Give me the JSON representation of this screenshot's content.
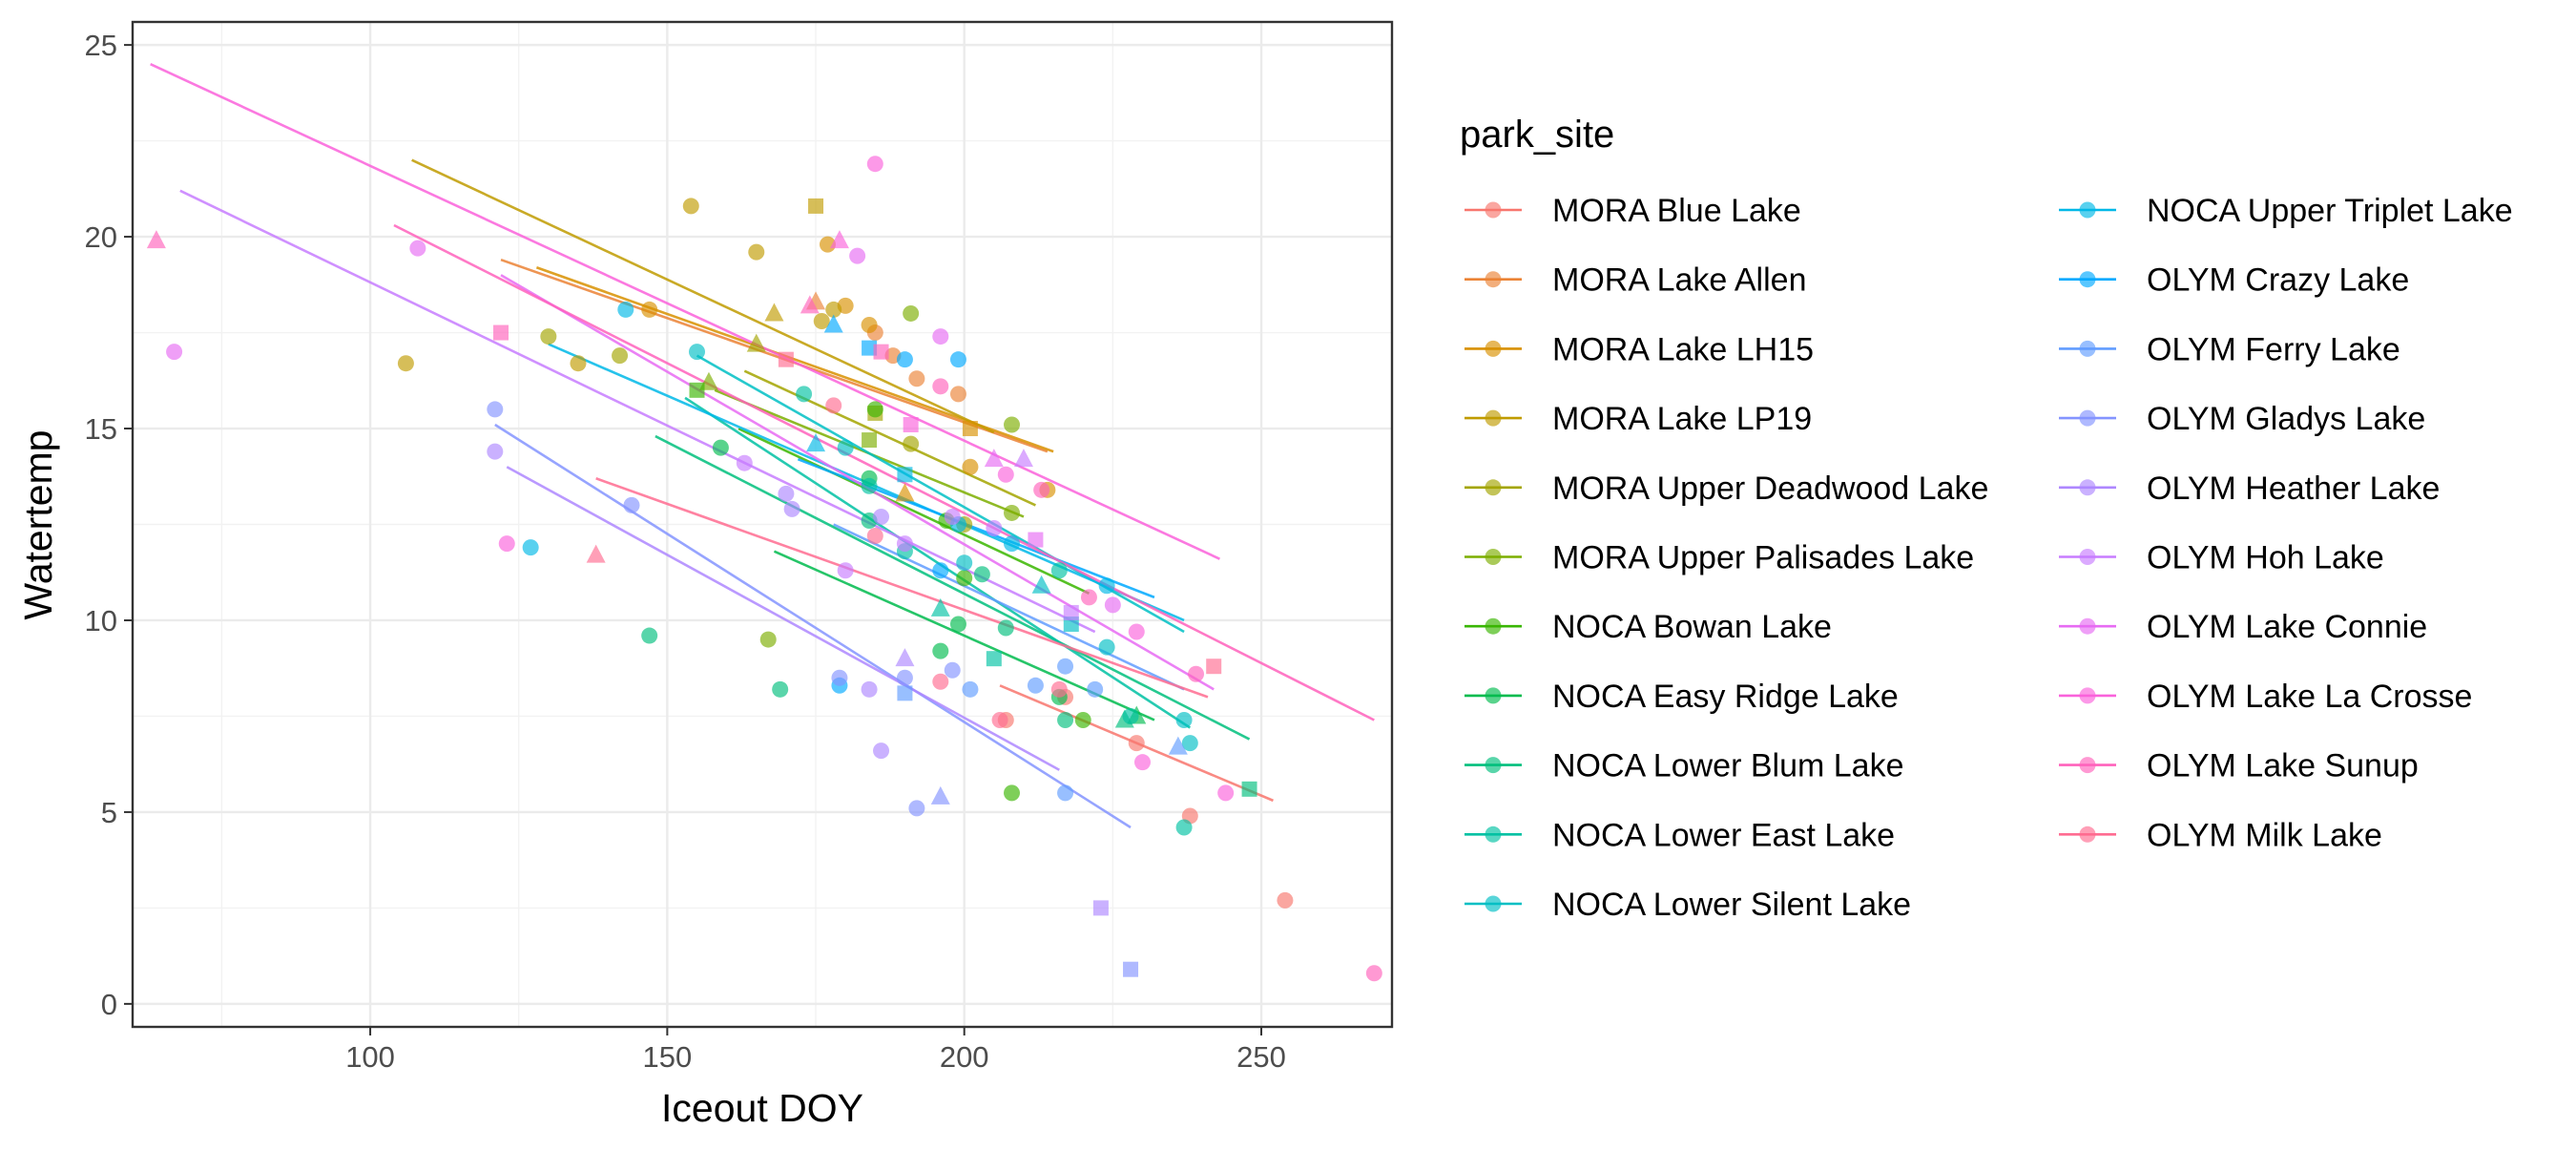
{
  "chart_data": {
    "type": "scatter",
    "xlabel": "Iceout DOY",
    "ylabel": "Watertemp",
    "xlim": [
      60,
      272
    ],
    "ylim": [
      -0.6,
      25.6
    ],
    "x_ticks": [
      100,
      150,
      200,
      250
    ],
    "y_ticks": [
      0,
      5,
      10,
      15,
      20,
      25
    ],
    "grid": true,
    "legend_title": "park_site",
    "legend_position": "right",
    "series": [
      {
        "name": "MORA Blue Lake",
        "color": "#F8766D",
        "points": [
          [
            207,
            7.4
          ],
          [
            217,
            8.0
          ],
          [
            229,
            6.8
          ],
          [
            238,
            4.9
          ],
          [
            254,
            2.7
          ]
        ],
        "trend": [
          [
            206,
            8.3
          ],
          [
            252,
            5.3
          ]
        ]
      },
      {
        "name": "MORA Lake Allen",
        "color": "#EB8335",
        "points": [
          [
            185,
            17.5
          ],
          [
            188,
            16.9
          ],
          [
            192,
            16.3
          ],
          [
            199,
            15.9
          ],
          [
            175,
            18.3
          ]
        ],
        "trend": [
          [
            122,
            19.4
          ],
          [
            214,
            14.4
          ]
        ]
      },
      {
        "name": "MORA Lake LH15",
        "color": "#D89000",
        "points": [
          [
            177,
            19.8
          ],
          [
            180,
            18.2
          ],
          [
            184,
            17.7
          ],
          [
            190,
            13.3
          ],
          [
            201,
            15.0
          ],
          [
            201,
            14.0
          ],
          [
            214,
            13.4
          ],
          [
            147,
            18.1
          ]
        ],
        "trend": [
          [
            128,
            19.2
          ],
          [
            215,
            14.4
          ]
        ]
      },
      {
        "name": "MORA Lake LP19",
        "color": "#C09B00",
        "points": [
          [
            154,
            20.8
          ],
          [
            165,
            19.6
          ],
          [
            168,
            18.0
          ],
          [
            175,
            20.8
          ],
          [
            178,
            18.1
          ],
          [
            176,
            17.8
          ],
          [
            106,
            16.7
          ],
          [
            135,
            16.7
          ]
        ],
        "trend": [
          [
            107,
            22.0
          ],
          [
            205,
            14.9
          ]
        ]
      },
      {
        "name": "MORA Upper Deadwood Lake",
        "color": "#A3A500",
        "points": [
          [
            142,
            16.9
          ],
          [
            165,
            17.2
          ],
          [
            185,
            15.4
          ],
          [
            191,
            14.6
          ],
          [
            200,
            12.5
          ],
          [
            130,
            17.4
          ]
        ],
        "trend": [
          [
            163,
            16.5
          ],
          [
            212,
            13.0
          ]
        ]
      },
      {
        "name": "MORA Upper Palisades Lake",
        "color": "#7CAE00",
        "points": [
          [
            157,
            16.2
          ],
          [
            184,
            14.7
          ],
          [
            191,
            18.0
          ],
          [
            208,
            15.1
          ],
          [
            208,
            12.8
          ],
          [
            167,
            9.5
          ]
        ],
        "trend": [
          [
            158,
            16.0
          ],
          [
            210,
            12.7
          ]
        ]
      },
      {
        "name": "NOCA Bowan Lake",
        "color": "#39B600",
        "points": [
          [
            155,
            16.0
          ],
          [
            185,
            15.5
          ],
          [
            197,
            12.6
          ],
          [
            200,
            11.1
          ],
          [
            208,
            5.5
          ],
          [
            220,
            7.4
          ]
        ],
        "trend": [
          [
            162,
            15.0
          ],
          [
            221,
            10.7
          ]
        ]
      },
      {
        "name": "NOCA Easy Ridge Lake",
        "color": "#00BB4E",
        "points": [
          [
            159,
            14.5
          ],
          [
            184,
            13.7
          ],
          [
            196,
            9.2
          ],
          [
            199,
            9.9
          ],
          [
            216,
            8.0
          ],
          [
            229,
            7.5
          ]
        ],
        "trend": [
          [
            168,
            11.8
          ],
          [
            232,
            7.4
          ]
        ]
      },
      {
        "name": "NOCA Lower Blum Lake",
        "color": "#00BF7D",
        "points": [
          [
            184,
            12.6
          ],
          [
            203,
            11.2
          ],
          [
            207,
            9.8
          ],
          [
            217,
            7.4
          ],
          [
            227,
            7.4
          ],
          [
            248,
            5.6
          ],
          [
            147,
            9.6
          ],
          [
            169,
            8.2
          ]
        ],
        "trend": [
          [
            148,
            14.8
          ],
          [
            248,
            6.9
          ]
        ]
      },
      {
        "name": "NOCA Lower East Lake",
        "color": "#00C1A3",
        "points": [
          [
            173,
            15.9
          ],
          [
            184,
            13.5
          ],
          [
            190,
            11.8
          ],
          [
            196,
            10.3
          ],
          [
            205,
            9.0
          ],
          [
            228,
            7.5
          ],
          [
            237,
            4.6
          ],
          [
            216,
            11.3
          ]
        ],
        "trend": [
          [
            153,
            15.8
          ],
          [
            238,
            7.2
          ]
        ]
      },
      {
        "name": "NOCA Lower Silent Lake",
        "color": "#00BFC4",
        "points": [
          [
            180,
            14.5
          ],
          [
            200,
            11.5
          ],
          [
            213,
            10.9
          ],
          [
            218,
            9.9
          ],
          [
            224,
            9.3
          ],
          [
            237,
            7.4
          ],
          [
            238,
            6.8
          ],
          [
            155,
            17.0
          ]
        ],
        "trend": [
          [
            155,
            16.9
          ],
          [
            237,
            9.7
          ]
        ]
      },
      {
        "name": "NOCA Upper Triplet Lake",
        "color": "#00B8E7",
        "points": [
          [
            143,
            18.1
          ],
          [
            175,
            14.6
          ],
          [
            190,
            13.8
          ],
          [
            199,
            12.5
          ],
          [
            208,
            12.0
          ],
          [
            224,
            10.9
          ],
          [
            127,
            11.9
          ]
        ],
        "trend": [
          [
            130,
            17.2
          ],
          [
            237,
            10.0
          ]
        ]
      },
      {
        "name": "OLYM Crazy Lake",
        "color": "#00A9FF",
        "points": [
          [
            178,
            17.7
          ],
          [
            184,
            17.1
          ],
          [
            190,
            16.8
          ],
          [
            199,
            16.8
          ],
          [
            196,
            11.3
          ],
          [
            179,
            8.3
          ]
        ],
        "trend": [
          [
            172,
            14.2
          ],
          [
            232,
            10.6
          ]
        ]
      },
      {
        "name": "OLYM Ferry Lake",
        "color": "#619CFF",
        "points": [
          [
            190,
            8.1
          ],
          [
            201,
            8.2
          ],
          [
            212,
            8.3
          ],
          [
            217,
            5.5
          ],
          [
            217,
            8.8
          ],
          [
            222,
            8.2
          ],
          [
            236,
            6.7
          ]
        ],
        "trend": [
          [
            178,
            12.5
          ],
          [
            237,
            8.2
          ]
        ]
      },
      {
        "name": "OLYM Gladys Lake",
        "color": "#8494FF",
        "points": [
          [
            121,
            15.5
          ],
          [
            144,
            13.0
          ],
          [
            179,
            8.5
          ],
          [
            190,
            8.5
          ],
          [
            192,
            5.1
          ],
          [
            196,
            5.4
          ],
          [
            228,
            0.9
          ],
          [
            198,
            8.7
          ]
        ],
        "trend": [
          [
            121,
            15.1
          ],
          [
            228,
            4.6
          ]
        ]
      },
      {
        "name": "OLYM Heather Lake",
        "color": "#AE87FF",
        "points": [
          [
            121,
            14.4
          ],
          [
            170,
            13.3
          ],
          [
            184,
            8.2
          ],
          [
            186,
            6.6
          ],
          [
            190,
            9.0
          ],
          [
            223,
            2.5
          ],
          [
            171,
            12.9
          ],
          [
            186,
            12.7
          ]
        ],
        "trend": [
          [
            123,
            14.0
          ],
          [
            216,
            6.1
          ]
        ]
      },
      {
        "name": "OLYM Hoh Lake",
        "color": "#C77CFF",
        "points": [
          [
            190,
            12.0
          ],
          [
            198,
            12.7
          ],
          [
            205,
            12.4
          ],
          [
            210,
            14.2
          ],
          [
            218,
            10.2
          ],
          [
            180,
            11.3
          ],
          [
            163,
            14.1
          ]
        ],
        "trend": [
          [
            68,
            21.2
          ],
          [
            222,
            9.7
          ]
        ]
      },
      {
        "name": "OLYM Lake Connie",
        "color": "#E76BF3",
        "points": [
          [
            182,
            19.5
          ],
          [
            196,
            17.4
          ],
          [
            205,
            14.2
          ],
          [
            212,
            12.1
          ],
          [
            225,
            10.4
          ],
          [
            108,
            19.7
          ],
          [
            67,
            17.0
          ]
        ],
        "trend": [
          [
            122,
            19.0
          ],
          [
            242,
            8.2
          ]
        ]
      },
      {
        "name": "OLYM Lake La Crosse",
        "color": "#FA62DB",
        "points": [
          [
            185,
            21.9
          ],
          [
            179,
            19.9
          ],
          [
            191,
            15.1
          ],
          [
            207,
            13.8
          ],
          [
            229,
            9.7
          ],
          [
            230,
            6.3
          ],
          [
            123,
            12.0
          ],
          [
            244,
            5.5
          ]
        ],
        "trend": [
          [
            63,
            24.5
          ],
          [
            243,
            11.6
          ]
        ]
      },
      {
        "name": "OLYM Lake Sunup",
        "color": "#FF62BC",
        "points": [
          [
            174,
            18.2
          ],
          [
            186,
            17.0
          ],
          [
            196,
            16.1
          ],
          [
            213,
            13.4
          ],
          [
            221,
            10.6
          ],
          [
            239,
            8.6
          ],
          [
            269,
            0.8
          ],
          [
            64,
            19.9
          ],
          [
            122,
            17.5
          ]
        ],
        "trend": [
          [
            104,
            20.3
          ],
          [
            269,
            7.4
          ]
        ]
      },
      {
        "name": "OLYM Milk Lake",
        "color": "#FF6C91",
        "points": [
          [
            170,
            16.8
          ],
          [
            178,
            15.6
          ],
          [
            185,
            12.2
          ],
          [
            196,
            8.4
          ],
          [
            206,
            7.4
          ],
          [
            216,
            8.2
          ],
          [
            138,
            11.7
          ],
          [
            242,
            8.8
          ]
        ],
        "trend": [
          [
            138,
            13.7
          ],
          [
            241,
            8.0
          ]
        ]
      }
    ]
  }
}
